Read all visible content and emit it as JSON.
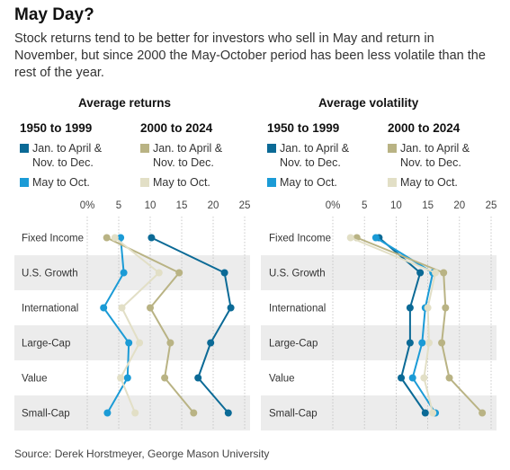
{
  "header": {
    "title": "May Day?",
    "subtitle": "Stock returns tend to be better for investors who sell in May and return in November, but since 2000 the May-October period has been less volatile than the rest of the year."
  },
  "legend": {
    "group1_title": "1950 to 1999",
    "group2_title": "2000 to 2024",
    "period_a_line1": "Jan. to April &",
    "period_a_line2": "Nov. to Dec.",
    "period_b": "May to Oct."
  },
  "colors": {
    "g1_a": "#0b6a96",
    "g1_b": "#1b9bd6",
    "g2_a": "#b9b384",
    "g2_b": "#e2dfc6",
    "band": "#ececec"
  },
  "source": "Source: Derek Horstmeyer, George Mason University",
  "chart_data": [
    {
      "type": "line",
      "title": "Average returns",
      "categories": [
        "Fixed Income",
        "U.S. Growth",
        "International",
        "Large-Cap",
        "Value",
        "Small-Cap"
      ],
      "x_ticks": [
        "0%",
        "5",
        "10",
        "15",
        "20",
        "25"
      ],
      "xlim": [
        0,
        25
      ],
      "series": [
        {
          "name": "1950 to 1999 Jan. to April & Nov. to Dec.",
          "color_key": "g1_a",
          "values": [
            10.2,
            21.8,
            22.8,
            19.6,
            17.6,
            22.4
          ]
        },
        {
          "name": "1950 to 1999 May to Oct.",
          "color_key": "g1_b",
          "values": [
            5.3,
            5.8,
            2.6,
            6.6,
            6.4,
            3.2
          ]
        },
        {
          "name": "2000 to 2024 Jan. to April & Nov. to Dec.",
          "color_key": "g2_a",
          "values": [
            3.1,
            14.6,
            10.0,
            13.2,
            12.3,
            16.9
          ]
        },
        {
          "name": "2000 to 2024 May to Oct.",
          "color_key": "g2_b",
          "values": [
            4.4,
            11.4,
            5.5,
            8.3,
            5.3,
            7.6
          ]
        }
      ]
    },
    {
      "type": "line",
      "title": "Average volatility",
      "categories": [
        "Fixed Income",
        "U.S. Growth",
        "International",
        "Large-Cap",
        "Value",
        "Small-Cap"
      ],
      "x_ticks": [
        "0%",
        "5",
        "10",
        "15",
        "20",
        "25"
      ],
      "xlim": [
        0,
        25
      ],
      "series": [
        {
          "name": "1950 to 1999 Jan. to April & Nov. to Dec.",
          "color_key": "g1_a",
          "values": [
            7.3,
            13.8,
            12.2,
            12.2,
            10.8,
            14.6
          ]
        },
        {
          "name": "1950 to 1999 May to Oct.",
          "color_key": "g1_b",
          "values": [
            6.8,
            15.8,
            14.6,
            14.1,
            12.6,
            16.2
          ]
        },
        {
          "name": "2000 to 2024 Jan. to April & Nov. to Dec.",
          "color_key": "g2_a",
          "values": [
            3.8,
            17.5,
            17.8,
            17.2,
            18.4,
            23.6
          ]
        },
        {
          "name": "2000 to 2024 May to Oct.",
          "color_key": "g2_b",
          "values": [
            2.8,
            16.2,
            15.0,
            15.2,
            14.4,
            15.8
          ]
        }
      ]
    }
  ]
}
